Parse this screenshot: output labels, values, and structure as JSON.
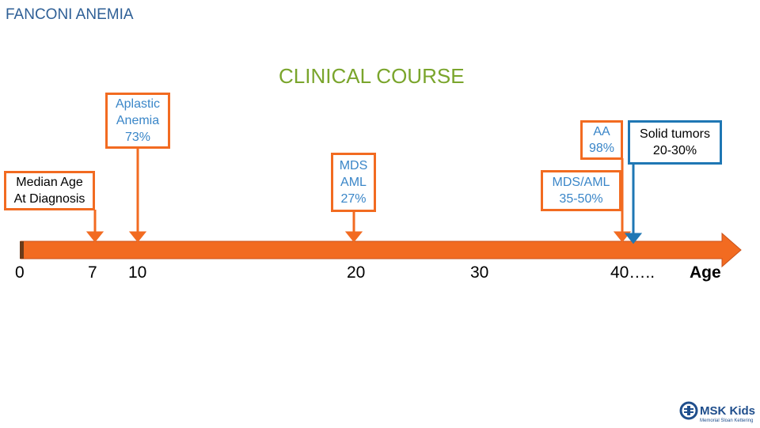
{
  "header": {
    "title": "FANCONI ANEMIA"
  },
  "slide": {
    "title": "CLINICAL COURSE"
  },
  "boxes": {
    "median": {
      "line1": "Median Age",
      "line2": "At Diagnosis"
    },
    "aplastic": {
      "line1": "Aplastic",
      "line2": "Anemia",
      "line3": "73%"
    },
    "mds": {
      "line1": "MDS",
      "line2": "AML",
      "line3": "27%"
    },
    "aa": {
      "line1": "AA",
      "line2": "98%"
    },
    "mds_aml": {
      "line1": "MDS/AML",
      "line2": "35-50%"
    },
    "solid": {
      "line1": "Solid tumors",
      "line2": "20-30%"
    }
  },
  "timeline": {
    "ticks": [
      "0",
      "7",
      "10",
      "20",
      "30",
      "40…..",
      "Age"
    ]
  },
  "logo": {
    "brand": "MSK Kids",
    "sub": "Memorial Sloan Kettering"
  },
  "colors": {
    "orange": "#f26b21",
    "blue": "#1f77b4",
    "title_blue": "#2e5f96",
    "title_green": "#7aa52c"
  }
}
